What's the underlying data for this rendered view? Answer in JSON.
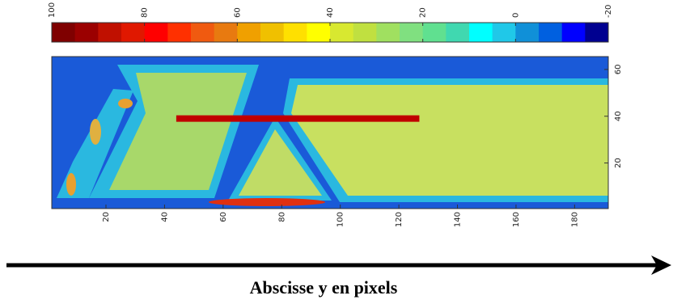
{
  "chart_data": {
    "type": "heatmap",
    "colorbar": {
      "clim": [
        100,
        -20
      ],
      "ticks": [
        100,
        80,
        60,
        40,
        20,
        0,
        {
          "value": -20,
          "label": "-20"
        }
      ],
      "colormap": [
        "#7f0000",
        "#9b0000",
        "#c01000",
        "#e01800",
        "#ff0000",
        "#ff3000",
        "#f05a10",
        "#e87a10",
        "#f0a000",
        "#f0c000",
        "#ffe000",
        "#ffff00",
        "#d8e830",
        "#c0e040",
        "#a0e060",
        "#80e080",
        "#60e090",
        "#40d8b0",
        "#00ffff",
        "#20c8e8",
        "#1090d8",
        "#0060e0",
        "#0000ff",
        "#000090"
      ]
    },
    "xlim": [
      1.5,
      191.5
    ],
    "xticks": [
      20,
      40,
      60,
      80,
      100,
      120,
      140,
      160,
      180
    ],
    "ylim": [
      0.5,
      65.5
    ],
    "yticks": [
      20,
      40,
      60
    ],
    "line_segment": {
      "x": [
        44,
        127
      ],
      "y": 39,
      "color": "#c00000"
    },
    "x_label": "Abscisse y en pixels"
  }
}
